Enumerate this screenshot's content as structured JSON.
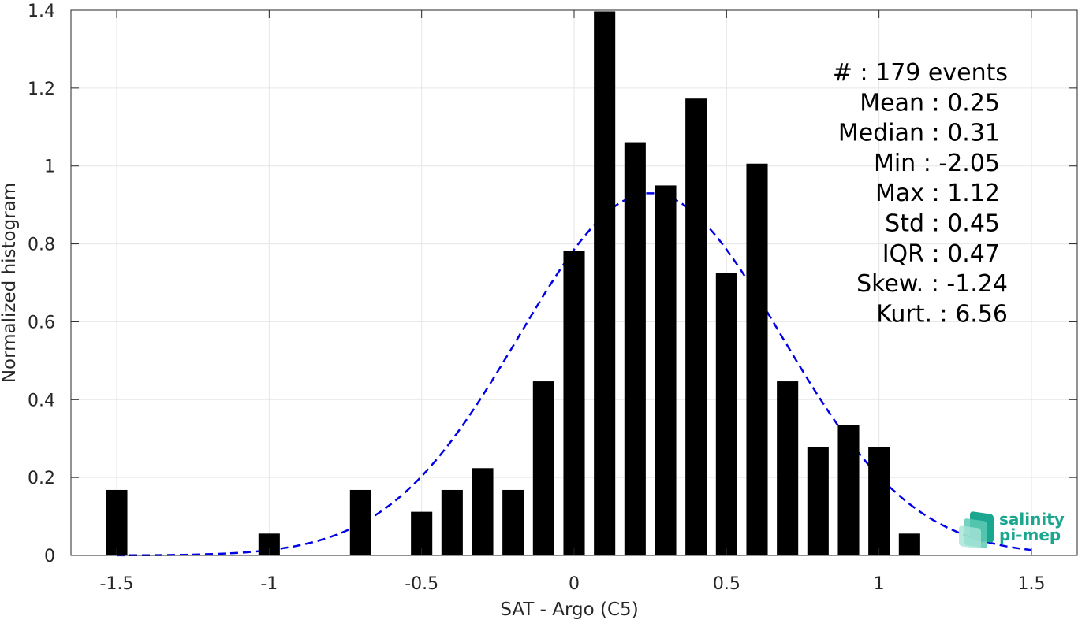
{
  "chart_data": {
    "type": "bar",
    "xlabel": "SAT - Argo (C5)",
    "ylabel": "Normalized histogram",
    "xlim": [
      -1.65,
      1.65
    ],
    "ylim": [
      0,
      1.4
    ],
    "grid": true,
    "x_ticks": [
      {
        "value": -1.5,
        "label": "-1.5"
      },
      {
        "value": -1,
        "label": "-1"
      },
      {
        "value": -0.5,
        "label": "-0.5"
      },
      {
        "value": 0,
        "label": "0"
      },
      {
        "value": 0.5,
        "label": "0.5"
      },
      {
        "value": 1,
        "label": "1"
      },
      {
        "value": 1.5,
        "label": "1.5"
      }
    ],
    "y_ticks": [
      {
        "value": 0,
        "label": "0"
      },
      {
        "value": 0.2,
        "label": "0.2"
      },
      {
        "value": 0.4,
        "label": "0.4"
      },
      {
        "value": 0.6,
        "label": "0.6"
      },
      {
        "value": 0.8,
        "label": "0.8"
      },
      {
        "value": 1,
        "label": "1"
      },
      {
        "value": 1.2,
        "label": "1.2"
      },
      {
        "value": 1.4,
        "label": "1.4"
      }
    ],
    "bar_width": 0.07,
    "bar_color": "#000000",
    "bars": [
      {
        "x": -1.5,
        "y": 0.168
      },
      {
        "x": -1.0,
        "y": 0.056
      },
      {
        "x": -0.7,
        "y": 0.168
      },
      {
        "x": -0.5,
        "y": 0.112
      },
      {
        "x": -0.4,
        "y": 0.168
      },
      {
        "x": -0.3,
        "y": 0.224
      },
      {
        "x": -0.2,
        "y": 0.168
      },
      {
        "x": -0.1,
        "y": 0.447
      },
      {
        "x": 0.0,
        "y": 0.782
      },
      {
        "x": 0.1,
        "y": 1.397
      },
      {
        "x": 0.2,
        "y": 1.061
      },
      {
        "x": 0.3,
        "y": 0.95
      },
      {
        "x": 0.4,
        "y": 1.173
      },
      {
        "x": 0.5,
        "y": 0.726
      },
      {
        "x": 0.6,
        "y": 1.006
      },
      {
        "x": 0.7,
        "y": 0.447
      },
      {
        "x": 0.8,
        "y": 0.279
      },
      {
        "x": 0.9,
        "y": 0.335
      },
      {
        "x": 1.0,
        "y": 0.279
      },
      {
        "x": 1.1,
        "y": 0.056
      }
    ],
    "fit_curve": {
      "style": "dashed",
      "color": "#0000e6",
      "mean": 0.25,
      "std": 0.43,
      "x_range": [
        -1.5,
        1.5
      ],
      "points": [
        [
          -1.5,
          0.0
        ],
        [
          -1.0,
          0.01
        ],
        [
          -0.7,
          0.08
        ],
        [
          -0.5,
          0.2
        ],
        [
          -0.25,
          0.47
        ],
        [
          0.0,
          0.79
        ],
        [
          0.25,
          0.93
        ],
        [
          0.5,
          0.79
        ],
        [
          0.75,
          0.47
        ],
        [
          1.0,
          0.2
        ],
        [
          1.25,
          0.06
        ],
        [
          1.5,
          0.015
        ]
      ]
    },
    "stats": [
      {
        "label": "#  :",
        "value": "179 events"
      },
      {
        "label": "Mean :",
        "value": "0.25"
      },
      {
        "label": "Median :",
        "value": "0.31"
      },
      {
        "label": "Min :",
        "value": "-2.05"
      },
      {
        "label": "Max :",
        "value": "1.12"
      },
      {
        "label": "Std :",
        "value": "0.45"
      },
      {
        "label": "IQR :",
        "value": "0.47"
      },
      {
        "label": "Skew. :",
        "value": "-1.24"
      },
      {
        "label": "Kurt. :",
        "value": "6.56"
      }
    ]
  },
  "logo": {
    "line1": "salinity",
    "line2": "pi-mep",
    "color": "#1aa68f"
  }
}
